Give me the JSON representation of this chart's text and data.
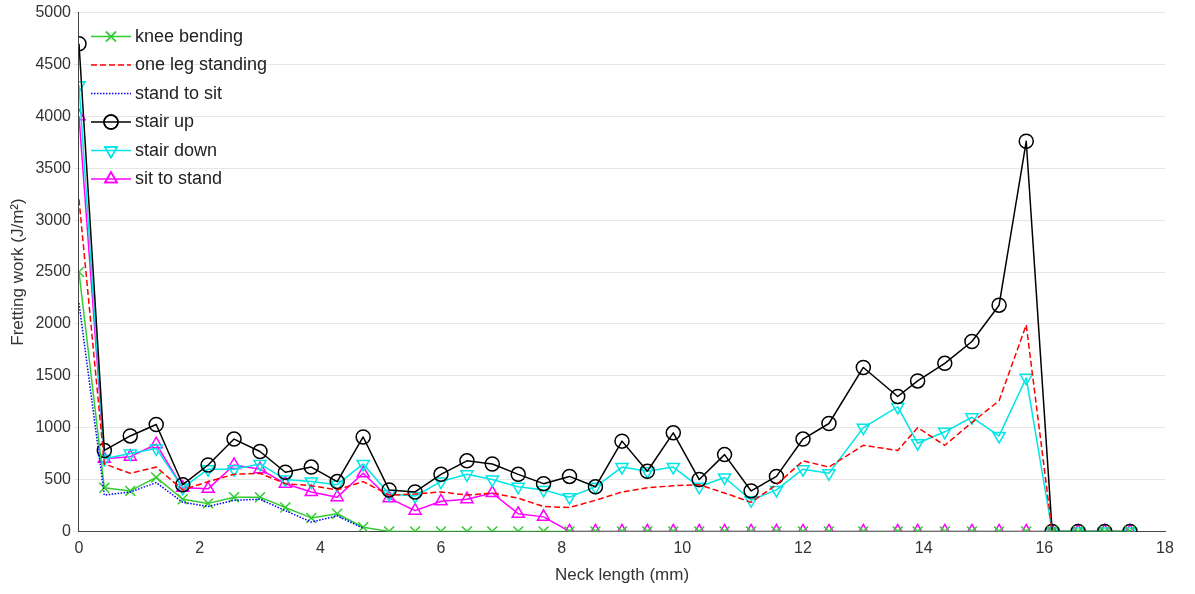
{
  "chart_data": {
    "type": "line",
    "xlabel": "Neck length (mm)",
    "ylabel": "Fretting work (J/m²)",
    "x": [
      0,
      0.42,
      0.85,
      1.28,
      1.72,
      2.14,
      2.57,
      3.0,
      3.42,
      3.85,
      4.28,
      4.71,
      5.14,
      5.57,
      6.0,
      6.43,
      6.85,
      7.28,
      7.7,
      8.13,
      8.56,
      9.0,
      9.42,
      9.85,
      10.28,
      10.7,
      11.14,
      11.56,
      12.0,
      12.43,
      13.0,
      13.57,
      13.9,
      14.35,
      14.8,
      15.25,
      15.7,
      16.13,
      16.56,
      17.0,
      17.42
    ],
    "xlim": [
      0,
      18
    ],
    "xticks": [
      0,
      2,
      4,
      6,
      8,
      10,
      12,
      14,
      16,
      18
    ],
    "ylim": [
      0,
      5000
    ],
    "yticks": [
      0,
      500,
      1000,
      1500,
      2000,
      2500,
      3000,
      3500,
      4000,
      4500,
      5000
    ],
    "grid": "y",
    "legend": "top left",
    "series": [
      {
        "name": "knee bending",
        "color": "#33cc33",
        "marker": "cross",
        "line_style": "solid",
        "values": [
          2500,
          420,
          390,
          520,
          310,
          270,
          330,
          330,
          230,
          130,
          170,
          40,
          0,
          0,
          0,
          0,
          0,
          0,
          0,
          0,
          0,
          0,
          0,
          0,
          0,
          0,
          0,
          0,
          0,
          0,
          0,
          0,
          0,
          0,
          0,
          0,
          0,
          0,
          0,
          0,
          0
        ]
      },
      {
        "name": "one leg standing",
        "color": "#ff0000",
        "marker": "none",
        "line_style": "dashed",
        "values": [
          3200,
          650,
          560,
          620,
          400,
          480,
          550,
          560,
          460,
          440,
          400,
          480,
          350,
          360,
          380,
          350,
          370,
          320,
          240,
          230,
          300,
          380,
          420,
          440,
          450,
          370,
          280,
          450,
          680,
          620,
          830,
          780,
          1000,
          830,
          1050,
          1260,
          1990,
          0,
          null,
          null,
          null
        ]
      },
      {
        "name": "stand to sit",
        "color": "#0000ff",
        "marker": "none",
        "line_style": "dotted",
        "values": [
          2200,
          350,
          380,
          470,
          280,
          240,
          300,
          310,
          200,
          90,
          150,
          30,
          null,
          null,
          null,
          null,
          null,
          null,
          null,
          null,
          null,
          null,
          null,
          null,
          null,
          null,
          null,
          null,
          null,
          null,
          null,
          null,
          null,
          null,
          null,
          null,
          null,
          null,
          null,
          null,
          null
        ]
      },
      {
        "name": "stair up",
        "color": "#000000",
        "marker": "circle",
        "line_style": "solid",
        "values": [
          4700,
          780,
          920,
          1030,
          450,
          640,
          890,
          770,
          570,
          620,
          480,
          910,
          400,
          380,
          550,
          680,
          650,
          550,
          460,
          530,
          430,
          870,
          580,
          950,
          500,
          740,
          390,
          530,
          890,
          1040,
          1580,
          1300,
          1450,
          1620,
          1830,
          2180,
          3760,
          0,
          0,
          0,
          0
        ]
      },
      {
        "name": "stair down",
        "color": "#00e5e5",
        "marker": "triangle-down",
        "line_style": "solid",
        "values": [
          4300,
          700,
          750,
          800,
          420,
          600,
          600,
          650,
          500,
          480,
          450,
          650,
          360,
          340,
          480,
          550,
          500,
          430,
          400,
          330,
          430,
          620,
          580,
          620,
          430,
          520,
          300,
          400,
          600,
          560,
          1000,
          1200,
          850,
          960,
          1100,
          920,
          1480,
          0,
          0,
          0,
          0
        ]
      },
      {
        "name": "sit to stand",
        "color": "#ff00ff",
        "marker": "triangle",
        "line_style": "solid",
        "values": [
          4000,
          700,
          720,
          840,
          420,
          410,
          640,
          600,
          460,
          380,
          330,
          560,
          320,
          200,
          290,
          310,
          370,
          170,
          140,
          0,
          0,
          0,
          0,
          0,
          0,
          0,
          0,
          0,
          0,
          0,
          0,
          0,
          0,
          0,
          0,
          0,
          0,
          0,
          0,
          0,
          0
        ]
      }
    ]
  }
}
